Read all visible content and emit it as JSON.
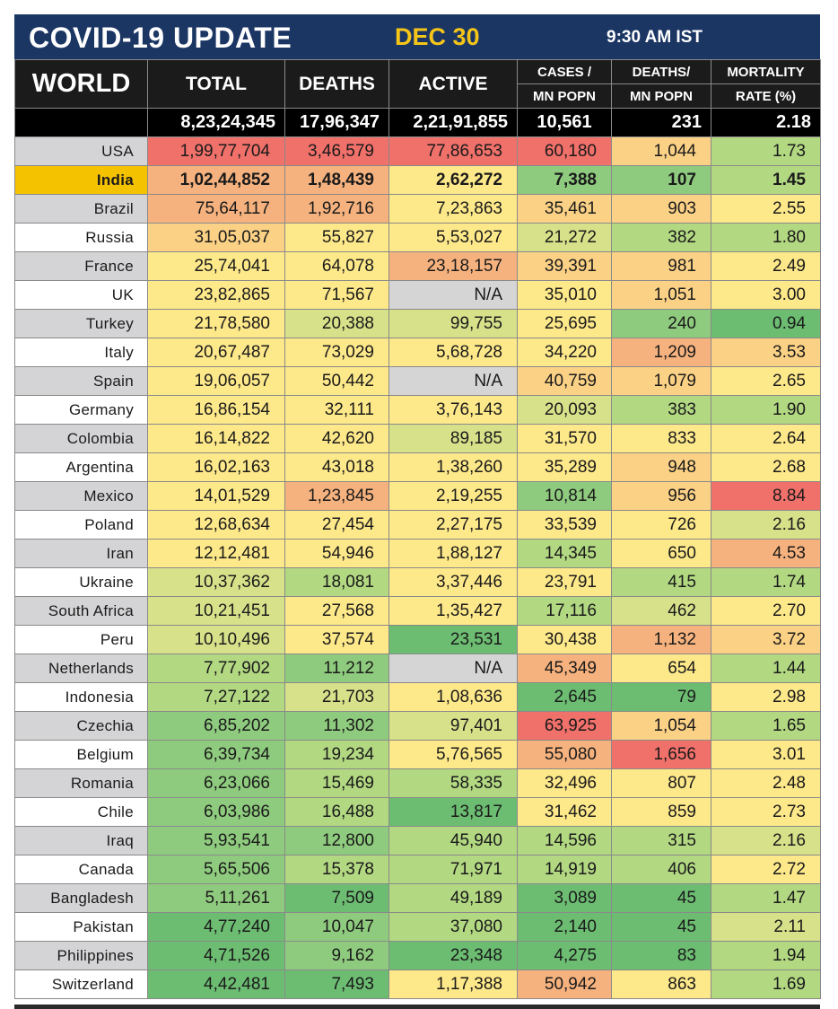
{
  "title": {
    "main": "COVID-19 UPDATE",
    "date": "DEC 30",
    "time": "9:30 AM IST"
  },
  "headers": {
    "world": "WORLD",
    "total": "TOTAL",
    "deaths": "DEATHS",
    "active": "ACTIVE",
    "cases_line1": "CASES /",
    "cases_line2": "MN POPN",
    "deaths_pm_line1": "DEATHS/",
    "deaths_pm_line2": "MN POPN",
    "mortality_line1": "MORTALITY",
    "mortality_line2": "RATE (%)"
  },
  "world": {
    "total": "8,23,24,345",
    "deaths": "17,96,347",
    "active": "2,21,91,855",
    "cases_mn": "10,561",
    "deaths_mn": "231",
    "rate": "2.18"
  },
  "colors": {
    "red": "#f0706a",
    "orange": "#f6b27e",
    "peach": "#fbd186",
    "yellow": "#fde88a",
    "yellowgreen": "#d6e18a",
    "lightgreen": "#b2d882",
    "green": "#8fcb7e",
    "deepgreen": "#6cbd72",
    "gray": "#d5d5d5",
    "title_bg": "#1c3664",
    "india_bg": "#f5c200"
  },
  "rows": [
    {
      "country": "USA",
      "total": "1,99,77,704",
      "deaths": "3,46,579",
      "active": "77,86,653",
      "cases_mn": "60,180",
      "deaths_mn": "1,044",
      "rate": "1.73",
      "fills": [
        "red",
        "red",
        "red",
        "red",
        "peach",
        "lightgreen"
      ]
    },
    {
      "country": "India",
      "total": "1,02,44,852",
      "deaths": "1,48,439",
      "active": "2,62,272",
      "cases_mn": "7,388",
      "deaths_mn": "107",
      "rate": "1.45",
      "fills": [
        "orange",
        "orange",
        "yellow",
        "green",
        "green",
        "lightgreen"
      ]
    },
    {
      "country": "Brazil",
      "total": "75,64,117",
      "deaths": "1,92,716",
      "active": "7,23,863",
      "cases_mn": "35,461",
      "deaths_mn": "903",
      "rate": "2.55",
      "fills": [
        "orange",
        "orange",
        "yellow",
        "peach",
        "peach",
        "yellow"
      ]
    },
    {
      "country": "Russia",
      "total": "31,05,037",
      "deaths": "55,827",
      "active": "5,53,027",
      "cases_mn": "21,272",
      "deaths_mn": "382",
      "rate": "1.80",
      "fills": [
        "peach",
        "yellow",
        "yellow",
        "yellowgreen",
        "lightgreen",
        "lightgreen"
      ]
    },
    {
      "country": "France",
      "total": "25,74,041",
      "deaths": "64,078",
      "active": "23,18,157",
      "cases_mn": "39,391",
      "deaths_mn": "981",
      "rate": "2.49",
      "fills": [
        "yellow",
        "yellow",
        "orange",
        "peach",
        "peach",
        "yellow"
      ]
    },
    {
      "country": "UK",
      "total": "23,82,865",
      "deaths": "71,567",
      "active": "N/A",
      "cases_mn": "35,010",
      "deaths_mn": "1,051",
      "rate": "3.00",
      "fills": [
        "yellow",
        "yellow",
        "gray",
        "yellow",
        "peach",
        "yellow"
      ]
    },
    {
      "country": "Turkey",
      "total": "21,78,580",
      "deaths": "20,388",
      "active": "99,755",
      "cases_mn": "25,695",
      "deaths_mn": "240",
      "rate": "0.94",
      "fills": [
        "yellow",
        "yellowgreen",
        "yellowgreen",
        "yellow",
        "green",
        "deepgreen"
      ]
    },
    {
      "country": "Italy",
      "total": "20,67,487",
      "deaths": "73,029",
      "active": "5,68,728",
      "cases_mn": "34,220",
      "deaths_mn": "1,209",
      "rate": "3.53",
      "fills": [
        "yellow",
        "yellow",
        "yellow",
        "yellow",
        "orange",
        "peach"
      ]
    },
    {
      "country": "Spain",
      "total": "19,06,057",
      "deaths": "50,442",
      "active": "N/A",
      "cases_mn": "40,759",
      "deaths_mn": "1,079",
      "rate": "2.65",
      "fills": [
        "yellow",
        "yellow",
        "gray",
        "peach",
        "peach",
        "yellow"
      ]
    },
    {
      "country": "Germany",
      "total": "16,86,154",
      "deaths": "32,111",
      "active": "3,76,143",
      "cases_mn": "20,093",
      "deaths_mn": "383",
      "rate": "1.90",
      "fills": [
        "yellow",
        "yellow",
        "yellow",
        "yellowgreen",
        "lightgreen",
        "lightgreen"
      ]
    },
    {
      "country": "Colombia",
      "total": "16,14,822",
      "deaths": "42,620",
      "active": "89,185",
      "cases_mn": "31,570",
      "deaths_mn": "833",
      "rate": "2.64",
      "fills": [
        "yellow",
        "yellow",
        "yellowgreen",
        "yellow",
        "yellow",
        "yellow"
      ]
    },
    {
      "country": "Argentina",
      "total": "16,02,163",
      "deaths": "43,018",
      "active": "1,38,260",
      "cases_mn": "35,289",
      "deaths_mn": "948",
      "rate": "2.68",
      "fills": [
        "yellow",
        "yellow",
        "yellow",
        "yellow",
        "peach",
        "yellow"
      ]
    },
    {
      "country": "Mexico",
      "total": "14,01,529",
      "deaths": "1,23,845",
      "active": "2,19,255",
      "cases_mn": "10,814",
      "deaths_mn": "956",
      "rate": "8.84",
      "fills": [
        "yellow",
        "orange",
        "yellow",
        "green",
        "peach",
        "red"
      ]
    },
    {
      "country": "Poland",
      "total": "12,68,634",
      "deaths": "27,454",
      "active": "2,27,175",
      "cases_mn": "33,539",
      "deaths_mn": "726",
      "rate": "2.16",
      "fills": [
        "yellow",
        "yellow",
        "yellow",
        "yellow",
        "yellow",
        "yellowgreen"
      ]
    },
    {
      "country": "Iran",
      "total": "12,12,481",
      "deaths": "54,946",
      "active": "1,88,127",
      "cases_mn": "14,345",
      "deaths_mn": "650",
      "rate": "4.53",
      "fills": [
        "yellow",
        "yellow",
        "yellow",
        "lightgreen",
        "yellow",
        "orange"
      ]
    },
    {
      "country": "Ukraine",
      "total": "10,37,362",
      "deaths": "18,081",
      "active": "3,37,446",
      "cases_mn": "23,791",
      "deaths_mn": "415",
      "rate": "1.74",
      "fills": [
        "yellowgreen",
        "lightgreen",
        "yellow",
        "yellow",
        "lightgreen",
        "lightgreen"
      ]
    },
    {
      "country": "South Africa",
      "total": "10,21,451",
      "deaths": "27,568",
      "active": "1,35,427",
      "cases_mn": "17,116",
      "deaths_mn": "462",
      "rate": "2.70",
      "fills": [
        "yellowgreen",
        "yellow",
        "yellow",
        "lightgreen",
        "yellowgreen",
        "yellow"
      ]
    },
    {
      "country": "Peru",
      "total": "10,10,496",
      "deaths": "37,574",
      "active": "23,531",
      "cases_mn": "30,438",
      "deaths_mn": "1,132",
      "rate": "3.72",
      "fills": [
        "yellowgreen",
        "yellow",
        "deepgreen",
        "yellow",
        "orange",
        "peach"
      ]
    },
    {
      "country": "Netherlands",
      "total": "7,77,902",
      "deaths": "11,212",
      "active": "N/A",
      "cases_mn": "45,349",
      "deaths_mn": "654",
      "rate": "1.44",
      "fills": [
        "lightgreen",
        "green",
        "gray",
        "orange",
        "yellow",
        "lightgreen"
      ]
    },
    {
      "country": "Indonesia",
      "total": "7,27,122",
      "deaths": "21,703",
      "active": "1,08,636",
      "cases_mn": "2,645",
      "deaths_mn": "79",
      "rate": "2.98",
      "fills": [
        "lightgreen",
        "yellowgreen",
        "yellow",
        "deepgreen",
        "deepgreen",
        "yellow"
      ]
    },
    {
      "country": "Czechia",
      "total": "6,85,202",
      "deaths": "11,302",
      "active": "97,401",
      "cases_mn": "63,925",
      "deaths_mn": "1,054",
      "rate": "1.65",
      "fills": [
        "green",
        "green",
        "yellowgreen",
        "red",
        "peach",
        "lightgreen"
      ]
    },
    {
      "country": "Belgium",
      "total": "6,39,734",
      "deaths": "19,234",
      "active": "5,76,565",
      "cases_mn": "55,080",
      "deaths_mn": "1,656",
      "rate": "3.01",
      "fills": [
        "green",
        "lightgreen",
        "yellow",
        "orange",
        "red",
        "yellow"
      ]
    },
    {
      "country": "Romania",
      "total": "6,23,066",
      "deaths": "15,469",
      "active": "58,335",
      "cases_mn": "32,496",
      "deaths_mn": "807",
      "rate": "2.48",
      "fills": [
        "green",
        "lightgreen",
        "lightgreen",
        "yellow",
        "yellow",
        "yellow"
      ]
    },
    {
      "country": "Chile",
      "total": "6,03,986",
      "deaths": "16,488",
      "active": "13,817",
      "cases_mn": "31,462",
      "deaths_mn": "859",
      "rate": "2.73",
      "fills": [
        "green",
        "lightgreen",
        "deepgreen",
        "yellow",
        "yellow",
        "yellow"
      ]
    },
    {
      "country": "Iraq",
      "total": "5,93,541",
      "deaths": "12,800",
      "active": "45,940",
      "cases_mn": "14,596",
      "deaths_mn": "315",
      "rate": "2.16",
      "fills": [
        "green",
        "green",
        "lightgreen",
        "lightgreen",
        "lightgreen",
        "yellowgreen"
      ]
    },
    {
      "country": "Canada",
      "total": "5,65,506",
      "deaths": "15,378",
      "active": "71,971",
      "cases_mn": "14,919",
      "deaths_mn": "406",
      "rate": "2.72",
      "fills": [
        "green",
        "lightgreen",
        "lightgreen",
        "lightgreen",
        "lightgreen",
        "yellow"
      ]
    },
    {
      "country": "Bangladesh",
      "total": "5,11,261",
      "deaths": "7,509",
      "active": "49,189",
      "cases_mn": "3,089",
      "deaths_mn": "45",
      "rate": "1.47",
      "fills": [
        "green",
        "deepgreen",
        "lightgreen",
        "deepgreen",
        "deepgreen",
        "lightgreen"
      ]
    },
    {
      "country": "Pakistan",
      "total": "4,77,240",
      "deaths": "10,047",
      "active": "37,080",
      "cases_mn": "2,140",
      "deaths_mn": "45",
      "rate": "2.11",
      "fills": [
        "deepgreen",
        "green",
        "lightgreen",
        "deepgreen",
        "deepgreen",
        "yellowgreen"
      ]
    },
    {
      "country": "Philippines",
      "total": "4,71,526",
      "deaths": "9,162",
      "active": "23,348",
      "cases_mn": "4,275",
      "deaths_mn": "83",
      "rate": "1.94",
      "fills": [
        "deepgreen",
        "green",
        "deepgreen",
        "deepgreen",
        "deepgreen",
        "lightgreen"
      ]
    },
    {
      "country": "Switzerland",
      "total": "4,42,481",
      "deaths": "7,493",
      "active": "1,17,388",
      "cases_mn": "50,942",
      "deaths_mn": "863",
      "rate": "1.69",
      "fills": [
        "deepgreen",
        "deepgreen",
        "yellow",
        "orange",
        "yellow",
        "lightgreen"
      ]
    }
  ]
}
